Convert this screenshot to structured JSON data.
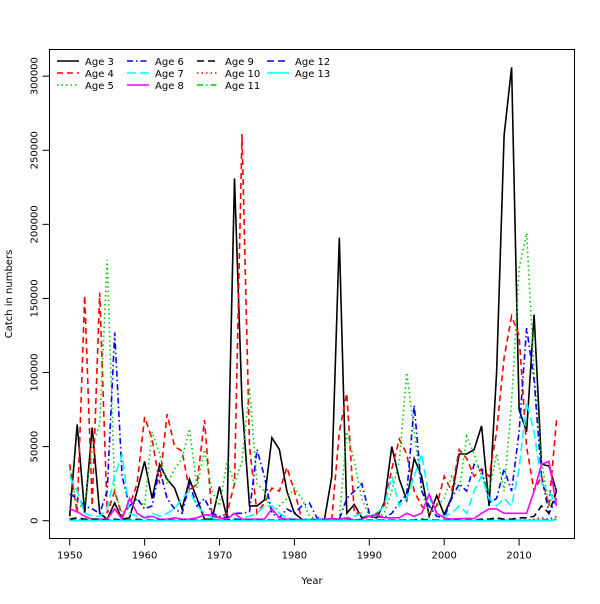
{
  "chart_data": {
    "type": "line",
    "title": "",
    "xlabel": "Year",
    "ylabel": "Catch in numbers",
    "xlim": [
      1947.3,
      2017.4
    ],
    "ylim": [
      -12000,
      318000
    ],
    "xticks": [
      1950,
      1960,
      1970,
      1980,
      1990,
      2000,
      2010
    ],
    "yticks": [
      0,
      50000,
      100000,
      150000,
      200000,
      250000,
      300000
    ],
    "legend_position": "top-left",
    "x_start": 1950,
    "series": [
      {
        "name": "Age 3",
        "color": "#000000",
        "dash": "",
        "values": [
          3000,
          65000,
          5000,
          63000,
          5000,
          1000,
          12000,
          1000,
          2000,
          20000,
          40000,
          15000,
          38000,
          28000,
          22000,
          8000,
          28000,
          15000,
          1000,
          1000,
          23000,
          2000,
          231000,
          80000,
          10000,
          10000,
          14000,
          56000,
          48000,
          20000,
          5000,
          1000,
          500,
          500,
          500,
          30000,
          191000,
          5000,
          11000,
          2000,
          3000,
          2000,
          12000,
          50000,
          28000,
          14000,
          42000,
          30000,
          3000,
          17000,
          4000,
          16000,
          45000,
          45000,
          48000,
          64000,
          10000,
          100000,
          260000,
          306000,
          75000,
          60000,
          139000,
          38000,
          37000,
          20000
        ]
      },
      {
        "name": "Age 4",
        "color": "#ff0000",
        "dash": "6,4",
        "values": [
          38000,
          5000,
          152000,
          10000,
          154000,
          5000,
          20000,
          3000,
          10000,
          25000,
          70000,
          55000,
          25000,
          72000,
          50000,
          47000,
          20000,
          25000,
          68000,
          3000,
          2000,
          5000,
          25000,
          261000,
          50000,
          5000,
          12000,
          22000,
          20000,
          36000,
          20000,
          1000,
          1000,
          1000,
          1000,
          1000,
          60000,
          86000,
          5000,
          5000,
          3000,
          5000,
          10000,
          35000,
          55000,
          45000,
          20000,
          10000,
          5000,
          10000,
          30000,
          20000,
          48000,
          42000,
          30000,
          35000,
          30000,
          60000,
          110000,
          138000,
          125000,
          50000,
          20000,
          30000,
          10000,
          68000
        ]
      },
      {
        "name": "Age 5",
        "color": "#00cd00",
        "dash": "1.5,3",
        "values": [
          35000,
          10000,
          10000,
          50000,
          65000,
          176000,
          20000,
          5000,
          10000,
          15000,
          10000,
          60000,
          45000,
          25000,
          35000,
          42000,
          62000,
          22000,
          48000,
          20000,
          10000,
          40000,
          25000,
          40000,
          90000,
          25000,
          20000,
          5000,
          10000,
          15000,
          22000,
          15000,
          3000,
          1000,
          1000,
          1000,
          1000,
          60000,
          40000,
          15000,
          3000,
          2000,
          5000,
          20000,
          40000,
          100000,
          60000,
          20000,
          5000,
          10000,
          15000,
          30000,
          20000,
          57000,
          45000,
          30000,
          20000,
          45000,
          20000,
          80000,
          170000,
          194000,
          100000,
          40000,
          10000,
          25000
        ]
      },
      {
        "name": "Age 6",
        "color": "#0000ff",
        "dash": "6,3,1.5,3",
        "values": [
          18000,
          15000,
          10000,
          8000,
          5000,
          20000,
          127000,
          30000,
          10000,
          15000,
          8000,
          10000,
          35000,
          15000,
          8000,
          5000,
          25000,
          10000,
          15000,
          5000,
          3000,
          2000,
          5000,
          5000,
          6000,
          48000,
          30000,
          5000,
          2000,
          8000,
          5000,
          10000,
          12000,
          2000,
          1000,
          1000,
          1000,
          15000,
          20000,
          25000,
          5000,
          3000,
          2000,
          5000,
          12000,
          18000,
          78000,
          20000,
          10000,
          3000,
          2000,
          15000,
          25000,
          20000,
          38000,
          35000,
          12000,
          15000,
          35000,
          20000,
          60000,
          130000,
          95000,
          30000,
          5000,
          15000
        ]
      },
      {
        "name": "Age 7",
        "color": "#00ffff",
        "dash": "9,4",
        "values": [
          30000,
          20000,
          5000,
          3000,
          3000,
          8000,
          30000,
          45000,
          5000,
          3000,
          2000,
          5000,
          3000,
          5000,
          8000,
          15000,
          20000,
          10000,
          5000,
          2000,
          1000,
          1000,
          1000,
          2000,
          3000,
          5000,
          10000,
          10000,
          5000,
          2000,
          1000,
          1000,
          1000,
          1000,
          1000,
          1000,
          1000,
          2000,
          3000,
          5000,
          3000,
          5000,
          10000,
          30000,
          10000,
          15000,
          30000,
          45000,
          15000,
          5000,
          3000,
          5000,
          10000,
          5000,
          20000,
          30000,
          15000,
          10000,
          15000,
          10000,
          35000,
          80000,
          60000,
          25000,
          20000,
          10000
        ]
      },
      {
        "name": "Age 8",
        "color": "#ff00ff",
        "dash": "",
        "values": [
          8000,
          6000,
          3000,
          1000,
          1000,
          1000,
          8000,
          1000,
          15000,
          5000,
          2000,
          3000,
          1000,
          1000,
          2000,
          1000,
          1000,
          2000,
          4000,
          4000,
          2000,
          1000,
          5000,
          1000,
          1000,
          1000,
          1000,
          8000,
          2000,
          1000,
          1000,
          500,
          500,
          500,
          1000,
          1500,
          1000,
          2000,
          500,
          1000,
          3000,
          4000,
          2000,
          2000,
          2000,
          5000,
          3000,
          5000,
          18000,
          5000,
          2000,
          1000,
          1500,
          1500,
          1500,
          5000,
          8000,
          8000,
          5000,
          5000,
          5000,
          5000,
          20000,
          38000,
          40000,
          10000
        ]
      },
      {
        "name": "Age 9",
        "color": "#000000",
        "dash": "7,4",
        "values": [
          1000,
          2000,
          1000,
          1000,
          1000,
          500,
          1000,
          500,
          500,
          1000,
          500,
          500,
          500,
          500,
          500,
          500,
          500,
          500,
          500,
          500,
          500,
          500,
          1000,
          500,
          500,
          500,
          500,
          500,
          500,
          500,
          500,
          300,
          300,
          300,
          300,
          300,
          300,
          500,
          500,
          500,
          500,
          500,
          500,
          500,
          500,
          500,
          500,
          1000,
          500,
          500,
          500,
          500,
          500,
          500,
          500,
          1000,
          1000,
          2000,
          1000,
          1000,
          2000,
          2000,
          3000,
          10000,
          5000,
          20000
        ]
      },
      {
        "name": "Age 10",
        "color": "#ff0000",
        "dash": "1.5,3",
        "values": [
          500,
          500,
          500,
          500,
          500,
          300,
          300,
          300,
          300,
          300,
          300,
          300,
          300,
          300,
          300,
          300,
          300,
          300,
          300,
          300,
          300,
          300,
          300,
          300,
          300,
          300,
          300,
          300,
          300,
          300,
          300,
          200,
          200,
          200,
          200,
          200,
          200,
          300,
          300,
          300,
          300,
          300,
          300,
          300,
          300,
          300,
          300,
          300,
          300,
          300,
          300,
          300,
          300,
          300,
          300,
          300,
          300,
          500,
          500,
          500,
          500,
          500,
          1000,
          2000,
          1000,
          3000
        ]
      },
      {
        "name": "Age 11",
        "color": "#00cd00",
        "dash": "6,3,1.5,3",
        "values": [
          300,
          300,
          300,
          300,
          300,
          200,
          200,
          200,
          200,
          200,
          200,
          200,
          200,
          200,
          200,
          200,
          200,
          200,
          200,
          200,
          200,
          200,
          200,
          200,
          200,
          200,
          200,
          200,
          200,
          200,
          200,
          100,
          100,
          100,
          100,
          100,
          100,
          200,
          200,
          200,
          200,
          200,
          200,
          200,
          200,
          200,
          200,
          200,
          200,
          200,
          200,
          200,
          200,
          200,
          200,
          200,
          200,
          300,
          300,
          300,
          300,
          300,
          500,
          1000,
          500,
          1500
        ]
      },
      {
        "name": "Age 12",
        "color": "#0000ff",
        "dash": "7,4",
        "values": [
          200,
          200,
          200,
          200,
          200,
          100,
          100,
          100,
          100,
          100,
          100,
          100,
          100,
          100,
          100,
          100,
          100,
          100,
          100,
          100,
          100,
          100,
          100,
          100,
          100,
          100,
          100,
          100,
          100,
          100,
          100,
          100,
          100,
          100,
          100,
          100,
          100,
          100,
          100,
          100,
          100,
          100,
          100,
          100,
          100,
          100,
          100,
          100,
          100,
          100,
          100,
          100,
          100,
          100,
          100,
          100,
          100,
          200,
          200,
          200,
          200,
          200,
          300,
          500,
          300,
          800
        ]
      },
      {
        "name": "Age 13",
        "color": "#00ffff",
        "dash": "",
        "values": [
          100,
          100,
          100,
          100,
          100,
          100,
          100,
          100,
          100,
          100,
          100,
          100,
          100,
          100,
          100,
          100,
          100,
          100,
          100,
          100,
          100,
          100,
          100,
          100,
          100,
          100,
          100,
          100,
          100,
          100,
          100,
          100,
          100,
          100,
          100,
          100,
          100,
          100,
          100,
          100,
          100,
          100,
          100,
          100,
          100,
          100,
          100,
          100,
          100,
          100,
          100,
          100,
          100,
          100,
          100,
          100,
          100,
          100,
          100,
          100,
          100,
          100,
          200,
          300,
          200,
          500
        ]
      }
    ]
  }
}
